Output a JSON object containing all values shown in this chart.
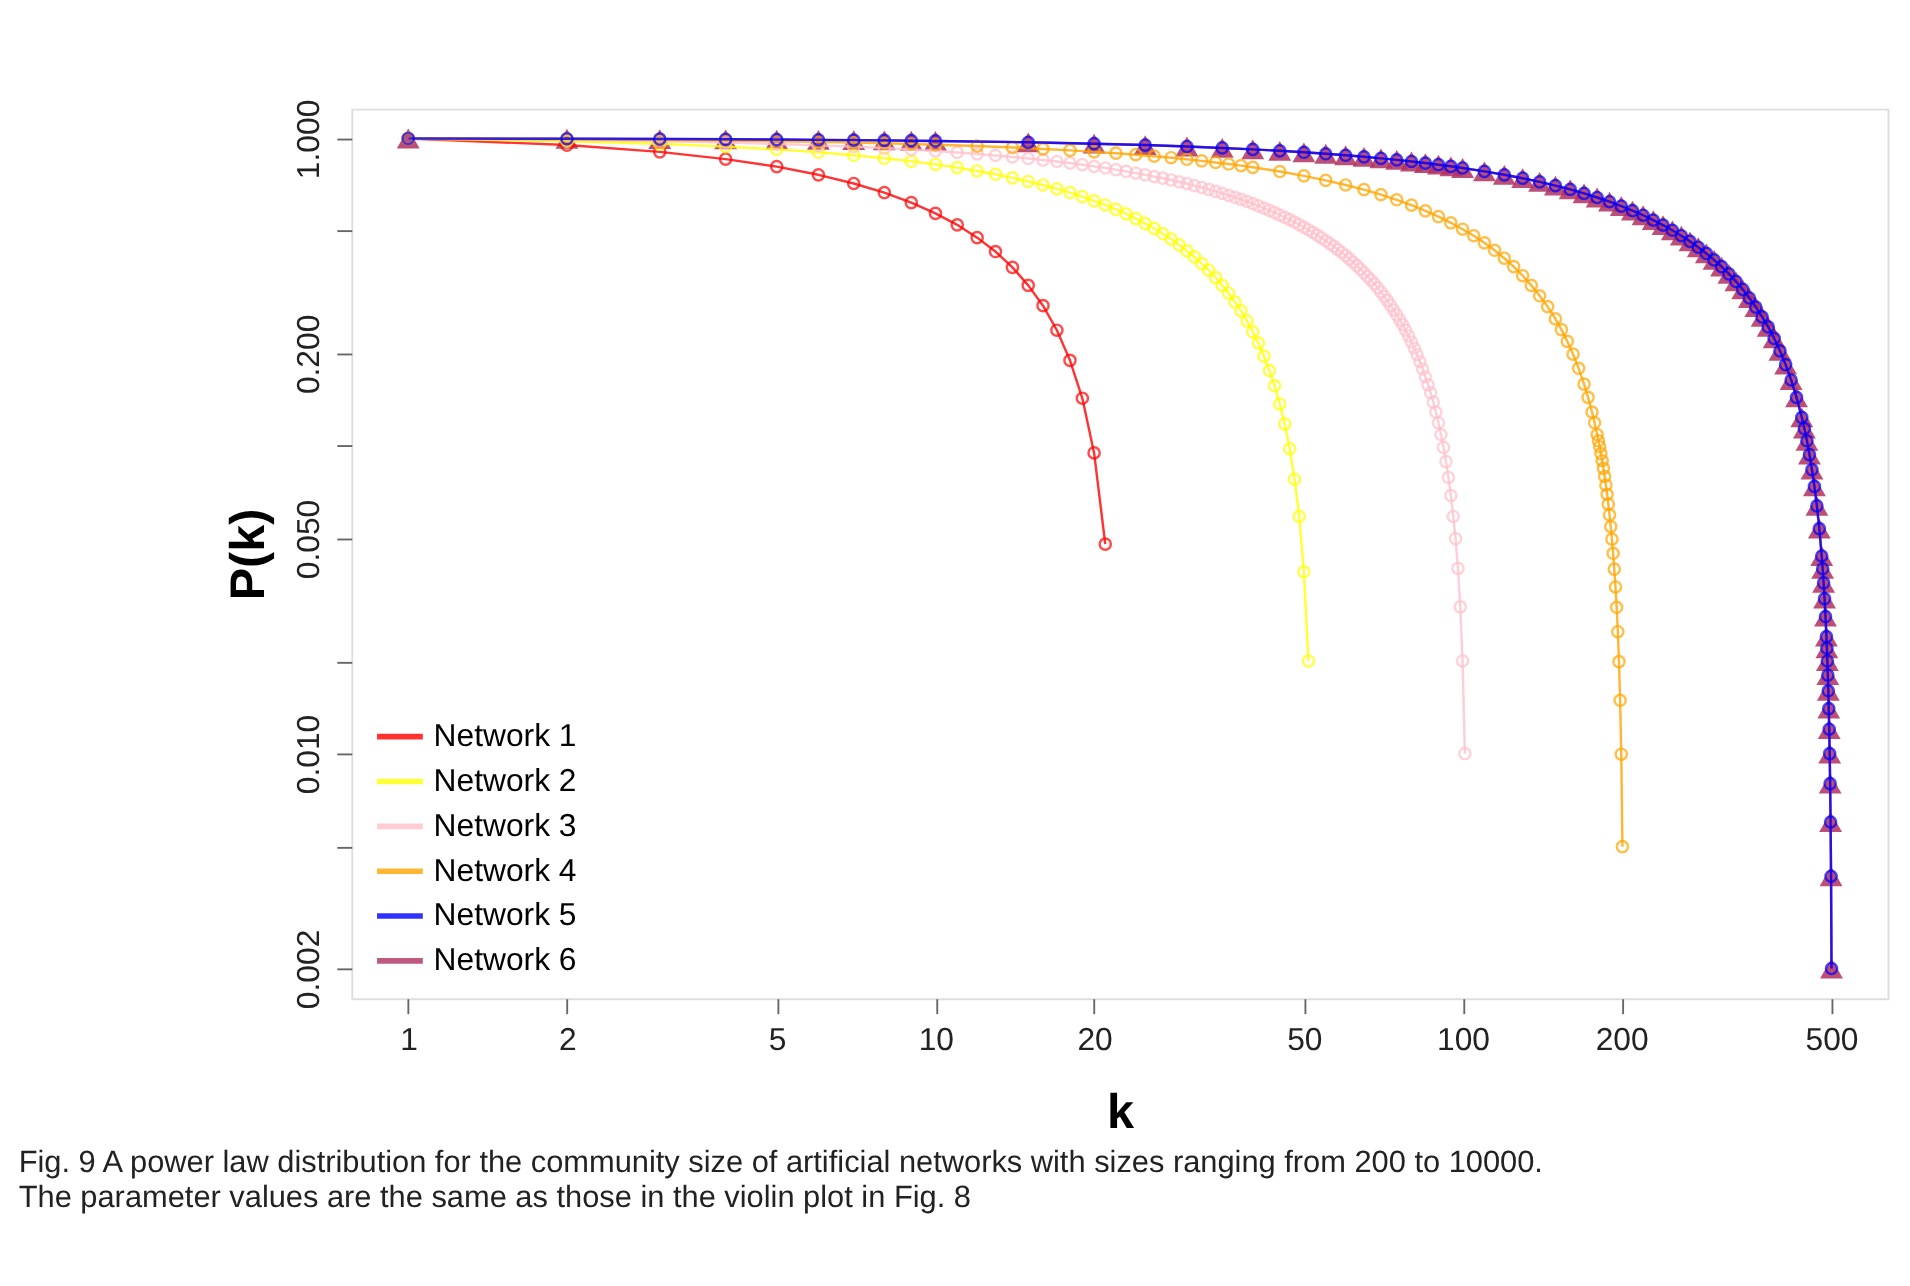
{
  "chart_data": {
    "type": "line",
    "xlabel": "k",
    "ylabel": "P(k)",
    "log": "xy",
    "grid": false,
    "legend": "bottom left",
    "line_style": "solid",
    "xlim": [
      0.78,
      640
    ],
    "ylim": [
      0.0016,
      1.25
    ],
    "xticks": [
      1,
      2,
      5,
      10,
      20,
      50,
      100,
      200,
      500
    ],
    "yticks": [
      {
        "value": 1,
        "label": "1.000"
      },
      {
        "value": 0.5,
        "label": null
      },
      {
        "value": 0.2,
        "label": "0.200"
      },
      {
        "value": 0.1,
        "label": null
      },
      {
        "value": 0.05,
        "label": "0.050"
      },
      {
        "value": 0.02,
        "label": null
      },
      {
        "value": 0.01,
        "label": "0.010"
      },
      {
        "value": 0.005,
        "label": null
      },
      {
        "value": 0.002,
        "label": "0.002"
      }
    ],
    "annotations": [
      "Fig. 9  A power law distribution for the community size of artificial networks with sizes ranging from 200 to 10000. The parameter values are the same as those in the violin plot in Fig. 8"
    ],
    "series": [
      {
        "name": "Network 1",
        "color": "#ff0000",
        "marker": "circle",
        "x": [
          1,
          2,
          3,
          4,
          5,
          6,
          7,
          8,
          9,
          10,
          11,
          12,
          13,
          14,
          15,
          16,
          17,
          18,
          19,
          20,
          21
        ],
        "values": [
          1.0,
          0.952,
          0.905,
          0.857,
          0.81,
          0.762,
          0.714,
          0.667,
          0.619,
          0.571,
          0.524,
          0.476,
          0.429,
          0.381,
          0.333,
          0.286,
          0.238,
          0.19,
          0.143,
          0.095,
          0.048
        ]
      },
      {
        "name": "Network 2",
        "color": "#ffff00",
        "marker": "circle",
        "x": [
          1,
          2,
          3,
          4,
          5,
          6,
          7,
          8,
          9,
          10,
          11,
          12,
          13,
          14,
          15,
          16,
          17,
          18,
          19,
          20,
          21,
          22,
          23,
          24,
          25,
          26,
          27,
          28,
          29,
          30,
          31,
          32,
          33,
          34,
          35,
          36,
          37,
          38,
          39,
          40,
          41,
          42,
          43,
          44,
          45,
          46,
          47,
          48,
          49,
          50,
          51
        ],
        "values": [
          1.0,
          0.98,
          0.961,
          0.941,
          0.922,
          0.902,
          0.882,
          0.863,
          0.843,
          0.824,
          0.804,
          0.784,
          0.765,
          0.745,
          0.725,
          0.706,
          0.686,
          0.667,
          0.647,
          0.627,
          0.608,
          0.588,
          0.569,
          0.549,
          0.529,
          0.51,
          0.49,
          0.471,
          0.451,
          0.431,
          0.412,
          0.392,
          0.373,
          0.353,
          0.333,
          0.314,
          0.294,
          0.275,
          0.255,
          0.235,
          0.216,
          0.196,
          0.176,
          0.157,
          0.137,
          0.118,
          0.098,
          0.078,
          0.059,
          0.039,
          0.02
        ]
      },
      {
        "name": "Network 3",
        "color": "#ffc0cb",
        "marker": "circle",
        "x": [
          1,
          2,
          3,
          4,
          5,
          6,
          7,
          8,
          9,
          10,
          11,
          12,
          13,
          14,
          15,
          16,
          17,
          18,
          19,
          20,
          21,
          22,
          23,
          24,
          25,
          26,
          27,
          28,
          29,
          30,
          31,
          32,
          33,
          34,
          35,
          36,
          37,
          38,
          39,
          40,
          41,
          42,
          43,
          44,
          45,
          46,
          47,
          48,
          49,
          50,
          51,
          52,
          53,
          54,
          55,
          56,
          57,
          58,
          59,
          60,
          61,
          62,
          63,
          64,
          65,
          66,
          67,
          68,
          69,
          70,
          71,
          72,
          73,
          74,
          75,
          76,
          77,
          78,
          79,
          80,
          81,
          82,
          83,
          84,
          85,
          86,
          87,
          88,
          89,
          90,
          91,
          92,
          93,
          94,
          95,
          96,
          97,
          98,
          99,
          100,
          101
        ],
        "values": [
          1.0,
          0.99,
          0.98,
          0.97,
          0.96,
          0.95,
          0.941,
          0.931,
          0.921,
          0.911,
          0.901,
          0.891,
          0.881,
          0.871,
          0.861,
          0.851,
          0.842,
          0.832,
          0.822,
          0.812,
          0.802,
          0.792,
          0.782,
          0.772,
          0.762,
          0.752,
          0.743,
          0.733,
          0.723,
          0.713,
          0.703,
          0.693,
          0.683,
          0.673,
          0.663,
          0.653,
          0.644,
          0.634,
          0.624,
          0.614,
          0.604,
          0.594,
          0.584,
          0.574,
          0.564,
          0.554,
          0.545,
          0.535,
          0.525,
          0.515,
          0.505,
          0.495,
          0.485,
          0.475,
          0.465,
          0.455,
          0.446,
          0.436,
          0.426,
          0.416,
          0.406,
          0.396,
          0.386,
          0.376,
          0.366,
          0.356,
          0.347,
          0.337,
          0.327,
          0.317,
          0.307,
          0.297,
          0.287,
          0.277,
          0.267,
          0.257,
          0.248,
          0.238,
          0.228,
          0.218,
          0.208,
          0.198,
          0.188,
          0.178,
          0.168,
          0.158,
          0.149,
          0.139,
          0.129,
          0.119,
          0.109,
          0.099,
          0.089,
          0.079,
          0.069,
          0.059,
          0.05,
          0.04,
          0.03,
          0.02,
          0.01
        ]
      },
      {
        "name": "Network 4",
        "color": "#ffa500",
        "marker": "circle",
        "x": [
          1,
          2,
          3,
          4,
          5,
          6,
          7,
          8,
          9,
          10,
          12,
          14,
          16,
          18,
          20,
          22,
          24,
          26,
          28,
          30,
          32,
          34,
          36,
          38,
          40,
          45,
          50,
          55,
          60,
          65,
          70,
          75,
          80,
          85,
          90,
          95,
          100,
          105,
          110,
          115,
          120,
          125,
          130,
          135,
          140,
          145,
          150,
          154,
          158,
          162,
          166,
          170,
          173,
          176,
          178,
          180,
          181,
          182,
          183,
          184,
          185,
          186,
          187,
          188,
          189,
          190,
          191,
          192,
          193,
          194,
          195,
          196,
          197,
          198,
          199,
          200,
          201
        ],
        "values": [
          1.0,
          0.995,
          0.99,
          0.985,
          0.98,
          0.975,
          0.97,
          0.965,
          0.96,
          0.955,
          0.945,
          0.935,
          0.925,
          0.915,
          0.905,
          0.896,
          0.886,
          0.876,
          0.866,
          0.856,
          0.846,
          0.836,
          0.826,
          0.816,
          0.806,
          0.781,
          0.756,
          0.731,
          0.706,
          0.682,
          0.657,
          0.632,
          0.607,
          0.582,
          0.557,
          0.532,
          0.507,
          0.483,
          0.458,
          0.433,
          0.408,
          0.383,
          0.358,
          0.333,
          0.308,
          0.284,
          0.259,
          0.239,
          0.219,
          0.199,
          0.179,
          0.159,
          0.144,
          0.129,
          0.119,
          0.109,
          0.104,
          0.0995,
          0.0945,
          0.0896,
          0.0846,
          0.0796,
          0.0746,
          0.0697,
          0.0647,
          0.0597,
          0.0547,
          0.0498,
          0.0448,
          0.0398,
          0.0348,
          0.0299,
          0.0249,
          0.0199,
          0.0149,
          0.00995,
          0.00498
        ]
      },
      {
        "name": "Network 5",
        "color": "#0000ff",
        "marker": "circle",
        "x": [
          1,
          2,
          3,
          4,
          5,
          6,
          7,
          8,
          9,
          10,
          15,
          20,
          25,
          30,
          35,
          40,
          45,
          50,
          55,
          60,
          65,
          70,
          75,
          80,
          85,
          90,
          95,
          100,
          110,
          120,
          130,
          140,
          150,
          160,
          170,
          180,
          190,
          200,
          210,
          220,
          230,
          240,
          250,
          260,
          270,
          280,
          290,
          300,
          310,
          320,
          330,
          340,
          350,
          360,
          370,
          380,
          390,
          400,
          410,
          420,
          430,
          440,
          445,
          450,
          455,
          460,
          465,
          470,
          475,
          480,
          482,
          484,
          486,
          488,
          490,
          491,
          492,
          493,
          494,
          495,
          496,
          497,
          498,
          499,
          500,
          501
        ],
        "values": [
          1.0,
          0.998,
          0.996,
          0.994,
          0.992,
          0.99,
          0.988,
          0.986,
          0.984,
          0.982,
          0.972,
          0.962,
          0.952,
          0.942,
          0.932,
          0.922,
          0.912,
          0.902,
          0.892,
          0.882,
          0.872,
          0.862,
          0.852,
          0.842,
          0.832,
          0.822,
          0.812,
          0.802,
          0.782,
          0.762,
          0.743,
          0.723,
          0.703,
          0.683,
          0.663,
          0.643,
          0.623,
          0.603,
          0.583,
          0.563,
          0.543,
          0.523,
          0.503,
          0.483,
          0.463,
          0.443,
          0.423,
          0.403,
          0.383,
          0.363,
          0.343,
          0.323,
          0.303,
          0.283,
          0.263,
          0.244,
          0.224,
          0.204,
          0.184,
          0.164,
          0.144,
          0.124,
          0.114,
          0.104,
          0.0938,
          0.0838,
          0.0739,
          0.0639,
          0.0539,
          0.0439,
          0.0399,
          0.0359,
          0.0319,
          0.0279,
          0.024,
          0.022,
          0.02,
          0.018,
          0.016,
          0.014,
          0.012,
          0.01,
          0.00798,
          0.00599,
          0.00399,
          0.002
        ]
      },
      {
        "name": "Network 6",
        "color": "#b03060",
        "marker": "triangle",
        "x": [
          1,
          2,
          3,
          4,
          5,
          6,
          7,
          8,
          9,
          10,
          15,
          20,
          25,
          30,
          35,
          40,
          45,
          50,
          55,
          60,
          65,
          70,
          75,
          80,
          85,
          90,
          95,
          100,
          110,
          120,
          130,
          140,
          150,
          160,
          170,
          180,
          190,
          200,
          210,
          220,
          230,
          240,
          250,
          260,
          270,
          280,
          290,
          300,
          310,
          320,
          330,
          340,
          350,
          360,
          370,
          380,
          390,
          400,
          410,
          420,
          430,
          440,
          445,
          450,
          455,
          460,
          465,
          470,
          475,
          480,
          482,
          484,
          486,
          488,
          490,
          491,
          492,
          493,
          494,
          495,
          496,
          497,
          498,
          499,
          500,
          501
        ],
        "values": [
          1.0,
          0.998,
          0.996,
          0.994,
          0.992,
          0.99,
          0.988,
          0.986,
          0.984,
          0.982,
          0.972,
          0.962,
          0.952,
          0.942,
          0.932,
          0.922,
          0.912,
          0.902,
          0.892,
          0.882,
          0.872,
          0.862,
          0.852,
          0.842,
          0.832,
          0.822,
          0.812,
          0.802,
          0.782,
          0.762,
          0.743,
          0.723,
          0.703,
          0.683,
          0.663,
          0.643,
          0.623,
          0.603,
          0.583,
          0.563,
          0.543,
          0.523,
          0.503,
          0.483,
          0.463,
          0.443,
          0.423,
          0.403,
          0.383,
          0.363,
          0.343,
          0.323,
          0.303,
          0.283,
          0.263,
          0.244,
          0.224,
          0.204,
          0.184,
          0.164,
          0.144,
          0.124,
          0.114,
          0.104,
          0.0938,
          0.0838,
          0.0739,
          0.0639,
          0.0539,
          0.0439,
          0.0399,
          0.0359,
          0.0319,
          0.0279,
          0.024,
          0.022,
          0.02,
          0.018,
          0.016,
          0.014,
          0.012,
          0.01,
          0.00798,
          0.00599,
          0.00399,
          0.002
        ]
      }
    ]
  }
}
